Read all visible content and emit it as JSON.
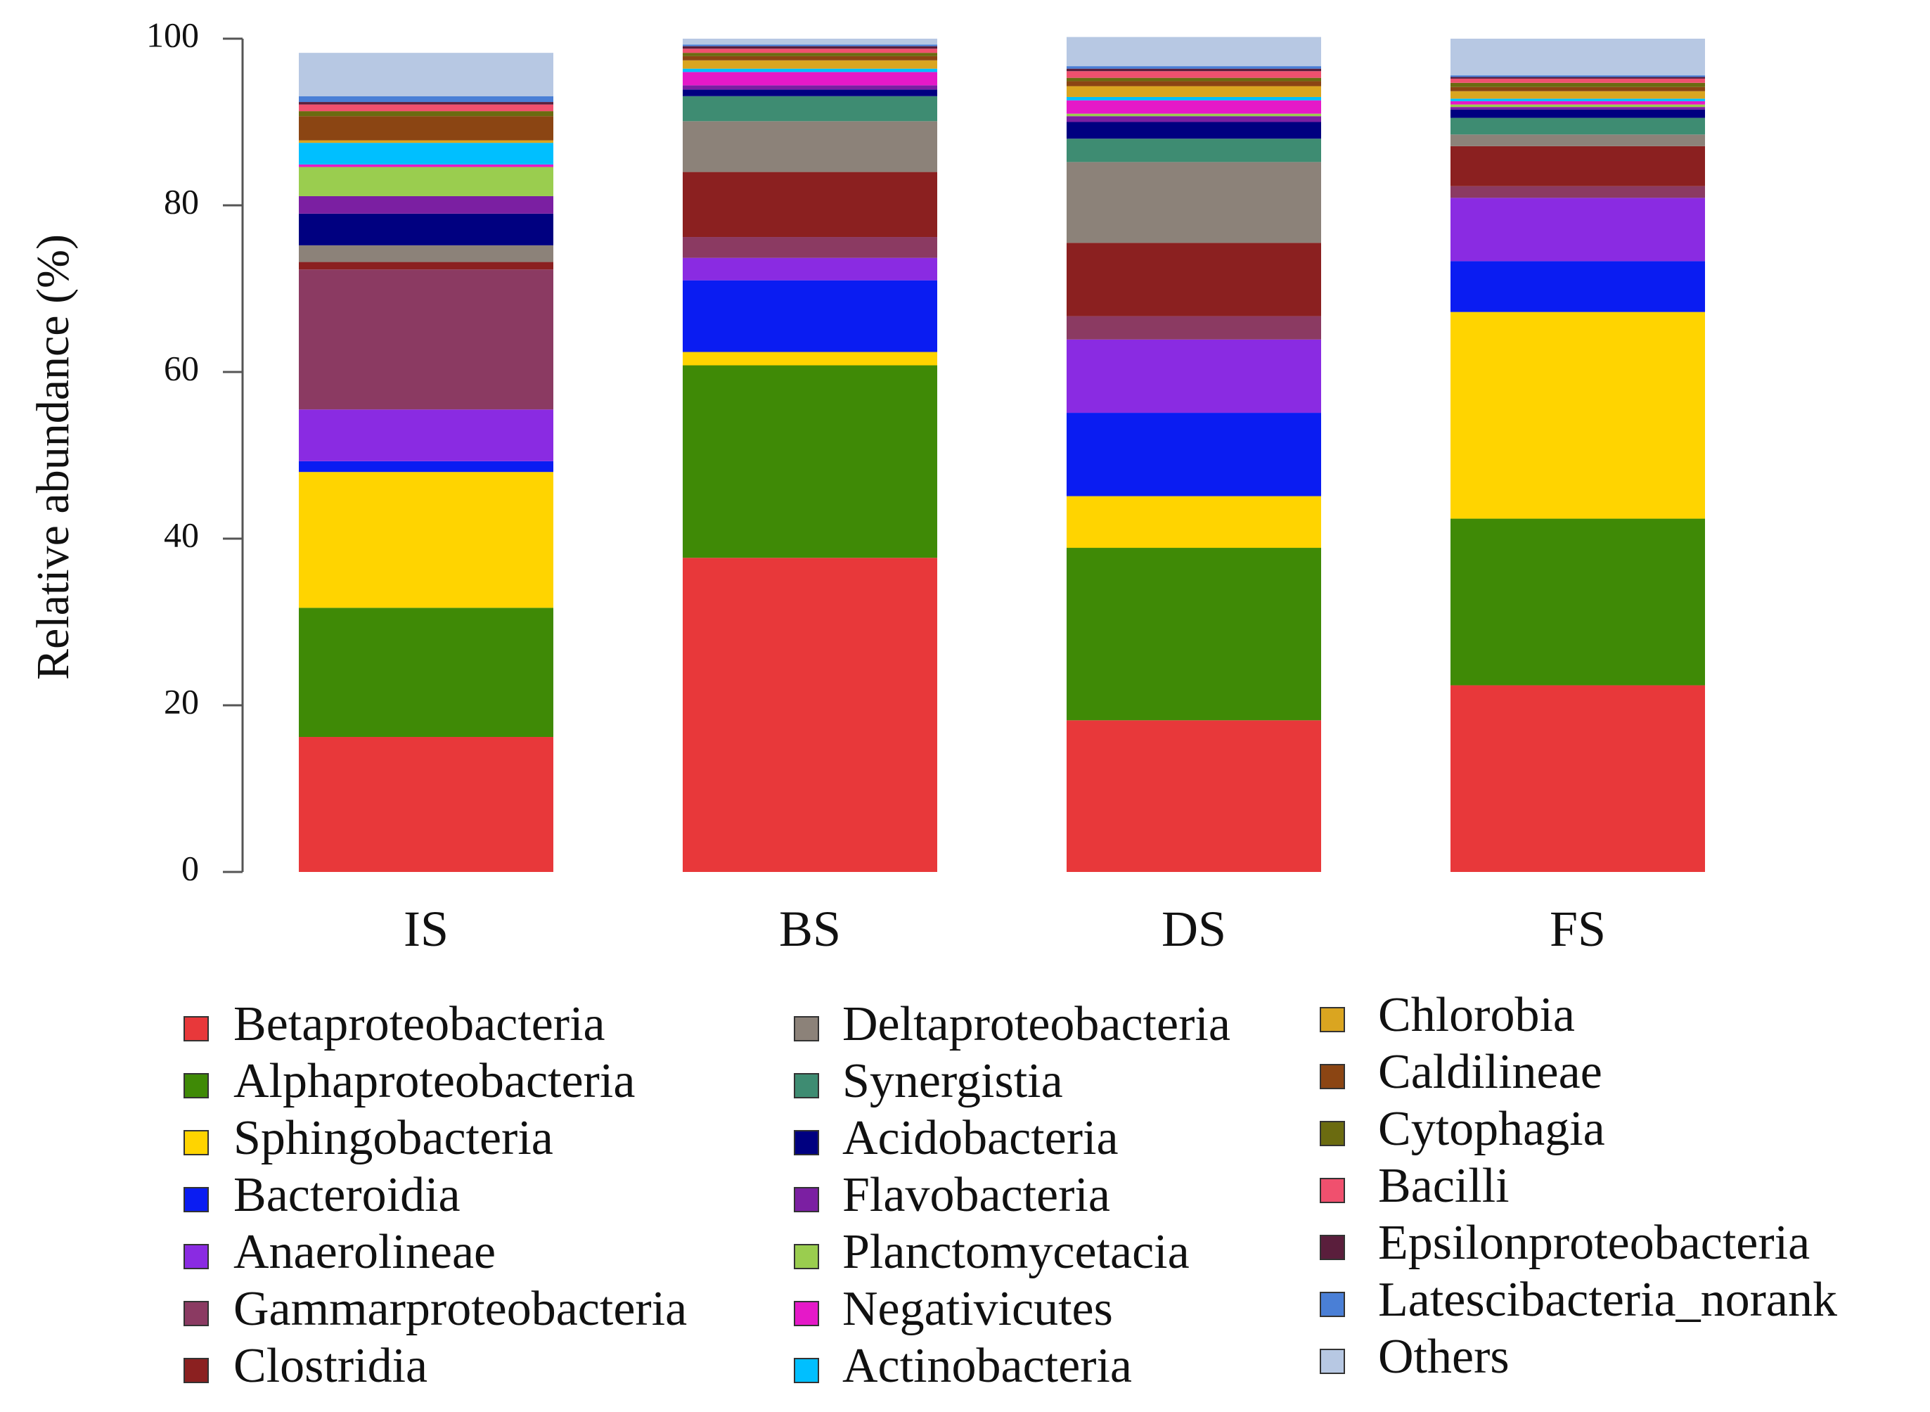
{
  "chart_data": {
    "type": "bar",
    "stacked": true,
    "title": "",
    "xlabel": "",
    "ylabel": "Relative abundance (%)",
    "ylim": [
      0,
      100
    ],
    "yticks": [
      0,
      20,
      40,
      60,
      80,
      100
    ],
    "categories": [
      "IS",
      "BS",
      "DS",
      "FS"
    ],
    "series": [
      {
        "name": "Betaproteobacteria",
        "color": "#E8383A",
        "values": [
          16.2,
          37.7,
          18.2,
          22.4
        ]
      },
      {
        "name": "Alphaproteobacteria",
        "color": "#3F8A06",
        "values": [
          15.5,
          23.1,
          20.7,
          20.0
        ]
      },
      {
        "name": "Sphingobacteria",
        "color": "#FFD400",
        "values": [
          16.3,
          1.6,
          6.2,
          24.8
        ]
      },
      {
        "name": "Bacteroidia",
        "color": "#0A1CF2",
        "values": [
          1.3,
          8.6,
          10.0,
          6.1
        ]
      },
      {
        "name": "Anaerolineae",
        "color": "#8A2BE2",
        "values": [
          6.2,
          2.7,
          8.8,
          7.6
        ]
      },
      {
        "name": "Gammarproteobacteria",
        "color": "#8B3A62",
        "values": [
          16.8,
          2.5,
          2.8,
          1.4
        ]
      },
      {
        "name": "Clostridia",
        "color": "#8B2020",
        "values": [
          0.9,
          7.8,
          8.8,
          4.8
        ]
      },
      {
        "name": "Deltaproteobacteria",
        "color": "#8C8279",
        "values": [
          2.0,
          6.1,
          9.7,
          1.4
        ]
      },
      {
        "name": "Synergistia",
        "color": "#3E8C72",
        "values": [
          0.0,
          3.0,
          2.8,
          2.0
        ]
      },
      {
        "name": "Acidobacteria",
        "color": "#000080",
        "values": [
          3.8,
          0.8,
          2.0,
          1.0
        ]
      },
      {
        "name": "Flavobacteria",
        "color": "#7B1FA2",
        "values": [
          2.1,
          0.5,
          0.7,
          0.3
        ]
      },
      {
        "name": "Planctomycetacia",
        "color": "#9ACD4F",
        "values": [
          3.5,
          0.0,
          0.3,
          0.3
        ]
      },
      {
        "name": "Negativicutes",
        "color": "#E519C8",
        "values": [
          0.3,
          1.6,
          1.6,
          0.4
        ]
      },
      {
        "name": "Actinobacteria",
        "color": "#00BFFF",
        "values": [
          2.6,
          0.4,
          0.4,
          0.3
        ]
      },
      {
        "name": "Chlorobia",
        "color": "#DAA520",
        "values": [
          0.3,
          1.0,
          1.3,
          0.9
        ]
      },
      {
        "name": "Caldilineae",
        "color": "#8B4513",
        "values": [
          2.9,
          0.5,
          0.6,
          0.5
        ]
      },
      {
        "name": "Cytophagia",
        "color": "#6B6B10",
        "values": [
          0.6,
          0.4,
          0.4,
          0.5
        ]
      },
      {
        "name": "Bacilli",
        "color": "#F0506E",
        "values": [
          0.8,
          0.5,
          0.8,
          0.5
        ]
      },
      {
        "name": "Epsilonproteobacteria",
        "color": "#5A1E3C",
        "values": [
          0.3,
          0.3,
          0.3,
          0.2
        ]
      },
      {
        "name": "Latescibacteria_norank",
        "color": "#4A7FD6",
        "values": [
          0.7,
          0.2,
          0.3,
          0.2
        ]
      },
      {
        "name": "Others",
        "color": "#B7C8E3",
        "values": [
          5.2,
          0.7,
          3.5,
          4.4
        ]
      }
    ]
  }
}
